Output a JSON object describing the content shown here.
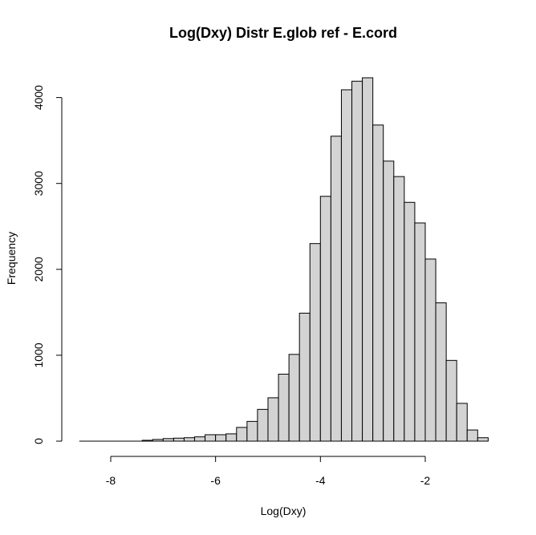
{
  "chart_data": {
    "type": "bar",
    "title": "Log(Dxy) Distr E.glob ref - E.cord",
    "xlabel": "Log(Dxy)",
    "ylabel": "Frequency",
    "bin_width": 0.2,
    "bin_start": -8.6,
    "x_ticks": [
      -8,
      -6,
      -4,
      -2
    ],
    "x_range": [
      -8.0,
      -2.0
    ],
    "y_ticks": [
      0,
      1000,
      2000,
      3000,
      4000
    ],
    "y_range": [
      0,
      4000
    ],
    "colors": {
      "bar_fill": "#d3d3d3",
      "bar_stroke": "#000000"
    },
    "values": [
      0,
      0,
      0,
      0,
      0,
      0,
      10,
      20,
      30,
      35,
      40,
      50,
      75,
      75,
      85,
      160,
      230,
      370,
      505,
      780,
      1010,
      1490,
      2300,
      2850,
      3550,
      4090,
      4190,
      4230,
      3680,
      3260,
      3080,
      2780,
      2540,
      2120,
      1610,
      940,
      440,
      130,
      40
    ]
  }
}
